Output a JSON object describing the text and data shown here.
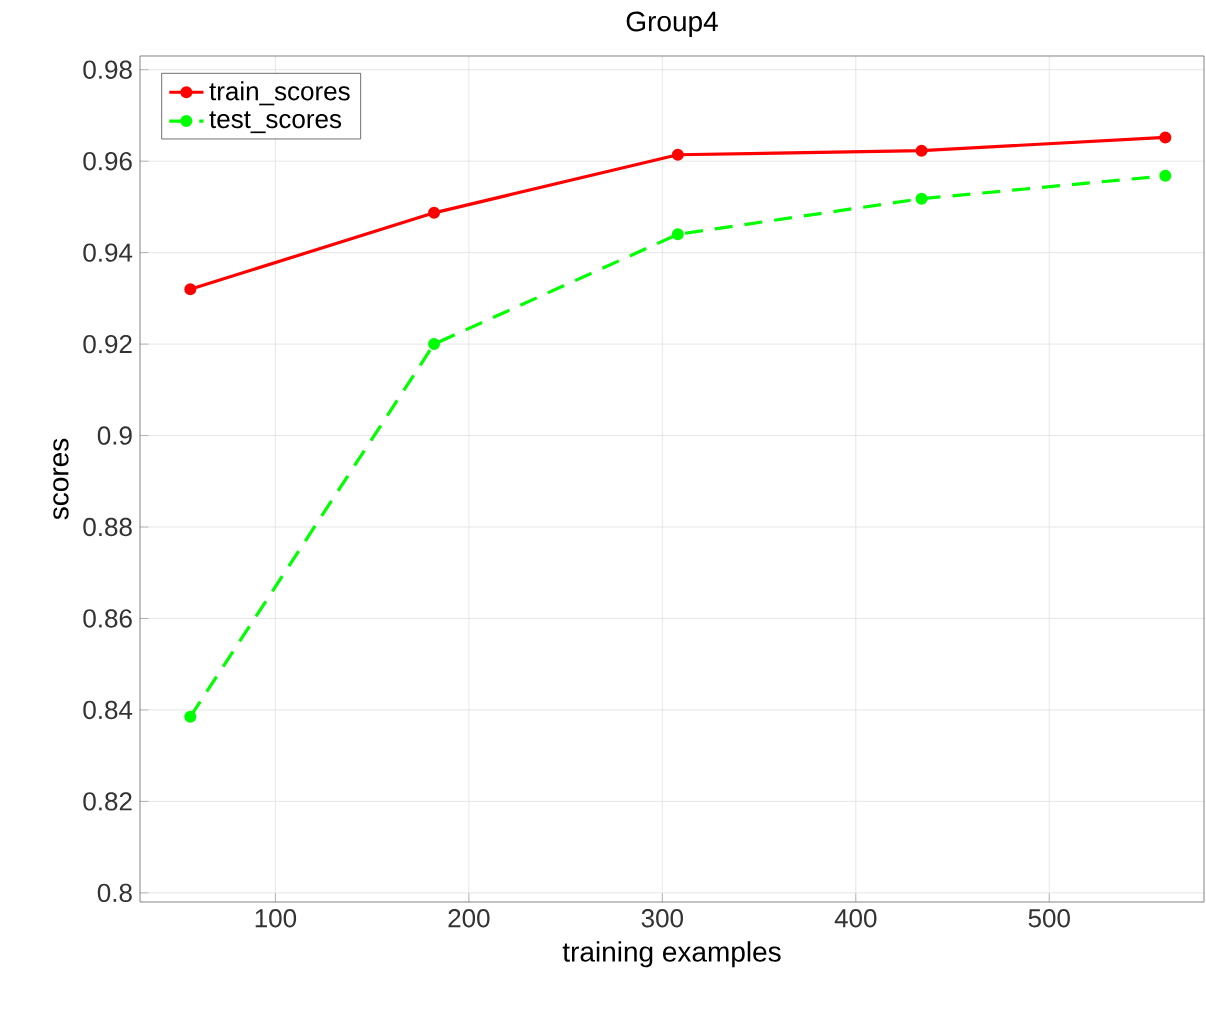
{
  "chart_data": {
    "type": "line",
    "title": "Group4",
    "xlabel": "training examples",
    "ylabel": "scores",
    "x": [
      56,
      182,
      308,
      434,
      560
    ],
    "series": [
      {
        "name": "train_scores",
        "color": "#ff0000",
        "values": [
          0.932,
          0.9487,
          0.9614,
          0.9623,
          0.9652
        ],
        "line_style": "solid"
      },
      {
        "name": "test_scores",
        "color": "#00ff00",
        "values": [
          0.8385,
          0.92,
          0.944,
          0.9518,
          0.9568
        ],
        "line_style": "dashed"
      }
    ],
    "xlim": [
      30,
      580
    ],
    "ylim": [
      0.798,
      0.983
    ],
    "xticks": [
      100,
      200,
      300,
      400,
      500
    ],
    "yticks": [
      0.8,
      0.82,
      0.84,
      0.86,
      0.88,
      0.9,
      0.92,
      0.94,
      0.96,
      0.98
    ],
    "grid": true,
    "legend": "top left",
    "marker": "circle"
  }
}
